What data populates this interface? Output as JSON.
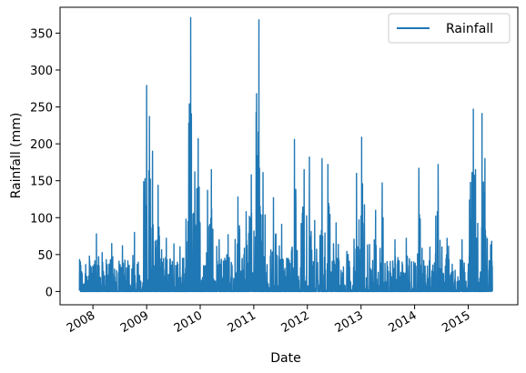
{
  "chart_data": {
    "type": "line",
    "title": "",
    "xlabel": "Date",
    "ylabel": "Rainfall (mm)",
    "x_tick_labels": [
      "2008",
      "2009",
      "2010",
      "2011",
      "2012",
      "2013",
      "2014",
      "2015"
    ],
    "y_tick_labels": [
      "0",
      "50",
      "100",
      "150",
      "200",
      "250",
      "300",
      "350"
    ],
    "ylim": [
      -18,
      385
    ],
    "xlim": [
      "2007-05-22",
      "2015-12-05"
    ],
    "grid": false,
    "legend_position": "top-right",
    "series": [
      {
        "name": "Rainfall",
        "color": "#1f77b4",
        "x_start": "2007-10-01",
        "x_end": "2015-06-15",
        "peaks": [
          [
            "2007-10-05",
            40
          ],
          [
            "2007-11-10",
            24
          ],
          [
            "2008-01-25",
            78
          ],
          [
            "2008-05-15",
            47
          ],
          [
            "2008-07-20",
            62
          ],
          [
            "2008-10-10",
            80
          ],
          [
            "2009-01-01",
            279
          ],
          [
            "2009-01-20",
            237
          ],
          [
            "2009-02-10",
            190
          ],
          [
            "2009-03-20",
            144
          ],
          [
            "2009-05-15",
            72
          ],
          [
            "2009-09-10",
            45
          ],
          [
            "2009-10-15",
            140
          ],
          [
            "2009-10-28",
            371
          ],
          [
            "2009-11-25",
            162
          ],
          [
            "2009-12-18",
            207
          ],
          [
            "2010-02-20",
            137
          ],
          [
            "2010-03-18",
            165
          ],
          [
            "2010-05-10",
            70
          ],
          [
            "2010-07-10",
            77
          ],
          [
            "2010-09-15",
            128
          ],
          [
            "2010-11-10",
            108
          ],
          [
            "2010-12-15",
            158
          ],
          [
            "2011-01-20",
            268
          ],
          [
            "2011-02-05",
            368
          ],
          [
            "2011-03-05",
            161
          ],
          [
            "2011-05-15",
            127
          ],
          [
            "2011-07-10",
            91
          ],
          [
            "2011-09-20",
            60
          ],
          [
            "2011-10-05",
            206
          ],
          [
            "2011-12-10",
            165
          ],
          [
            "2012-01-15",
            182
          ],
          [
            "2012-02-20",
            96
          ],
          [
            "2012-04-10",
            180
          ],
          [
            "2012-05-20",
            172
          ],
          [
            "2012-07-15",
            93
          ],
          [
            "2012-10-05",
            50
          ],
          [
            "2012-12-01",
            160
          ],
          [
            "2013-01-05",
            209
          ],
          [
            "2013-04-10",
            110
          ],
          [
            "2013-05-25",
            147
          ],
          [
            "2013-08-20",
            70
          ],
          [
            "2013-11-05",
            72
          ],
          [
            "2014-01-30",
            167
          ],
          [
            "2014-04-15",
            60
          ],
          [
            "2014-06-10",
            172
          ],
          [
            "2014-08-10",
            72
          ],
          [
            "2014-11-20",
            70
          ],
          [
            "2015-01-10",
            124
          ],
          [
            "2015-02-05",
            247
          ],
          [
            "2015-02-20",
            165
          ],
          [
            "2015-04-05",
            241
          ],
          [
            "2015-04-25",
            180
          ],
          [
            "2015-06-10",
            68
          ]
        ]
      }
    ]
  }
}
